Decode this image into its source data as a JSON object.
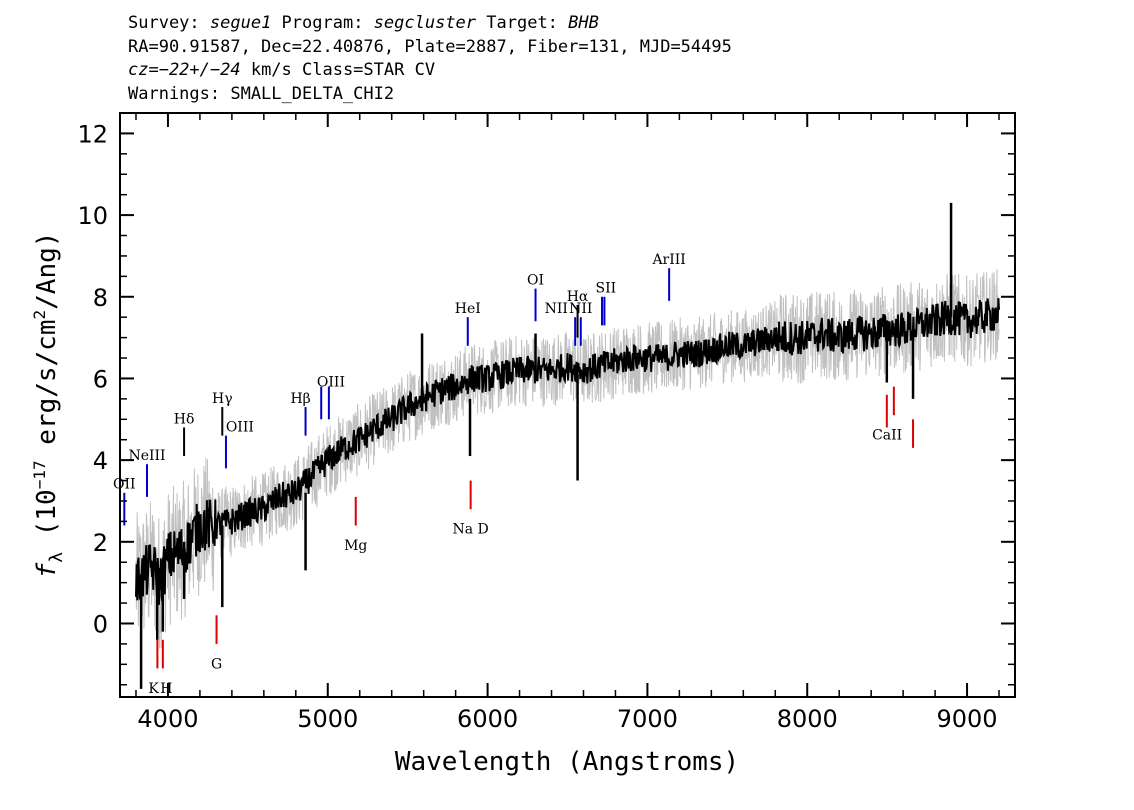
{
  "header": {
    "line1": {
      "survey_label": "Survey: ",
      "survey": "segue1",
      "program_label": " Program: ",
      "program": "segcluster",
      "target_label": " Target: ",
      "target": "BHB"
    },
    "line2": "RA=90.91587, Dec=22.40876, Plate=2887, Fiber=131, MJD=54495",
    "line3": {
      "cz": "cz=−22+/−24",
      "rest": " km/s Class=STAR CV"
    },
    "line4": "Warnings: SMALL_DELTA_CHI2"
  },
  "chart_data": {
    "type": "line",
    "xlabel": "Wavelength (Angstroms)",
    "ylabel_parts": {
      "f": "f",
      "sub": "λ",
      "pre": " (10",
      "exp1": "−17",
      "mid": " erg/s/cm",
      "exp2": "2",
      "post": "/Ang)"
    },
    "xlim": [
      3700,
      9300
    ],
    "ylim": [
      -1.8,
      12.5
    ],
    "xticks": [
      4000,
      5000,
      6000,
      7000,
      8000,
      9000
    ],
    "yticks": [
      0,
      2,
      4,
      6,
      8,
      10,
      12
    ],
    "colors": {
      "smoothed": "#000000",
      "raw": "#c0c0c0",
      "emission": "#0000cc",
      "absorption": "#dd0000",
      "neutral": "#000000"
    },
    "series": [
      {
        "style": "raw-noisy",
        "x": [
          3800,
          3850,
          3900,
          3950,
          4000,
          4100,
          4200,
          4300,
          4400,
          4500,
          4600,
          4700,
          4800,
          4900,
          5000,
          5100,
          5200,
          5300,
          5400,
          5500,
          5600,
          5700,
          5800,
          5900,
          6000,
          6100,
          6200,
          6300,
          6400,
          6500,
          6600,
          6700,
          6800,
          6900,
          7000,
          7100,
          7200,
          7300,
          7400,
          7500,
          7600,
          7700,
          7800,
          7900,
          8000,
          8100,
          8200,
          8300,
          8400,
          8500,
          8600,
          8700,
          8800,
          8900,
          9000,
          9100,
          9200
        ],
        "y": [
          1.0,
          1.2,
          1.4,
          1.0,
          1.6,
          1.8,
          2.4,
          2.4,
          2.5,
          2.7,
          2.8,
          3.1,
          3.2,
          3.6,
          4.0,
          4.3,
          4.5,
          4.8,
          5.0,
          5.3,
          5.5,
          5.7,
          5.8,
          6.0,
          6.0,
          6.1,
          6.2,
          6.2,
          6.2,
          6.3,
          6.2,
          6.3,
          6.4,
          6.5,
          6.5,
          6.5,
          6.6,
          6.6,
          6.7,
          6.8,
          6.8,
          6.9,
          7.0,
          7.0,
          7.0,
          7.1,
          7.0,
          7.1,
          7.1,
          7.2,
          7.2,
          7.3,
          7.4,
          7.5,
          7.4,
          7.5,
          7.6
        ]
      },
      {
        "style": "smoothed",
        "x": [
          3800,
          3850,
          3900,
          3950,
          4000,
          4100,
          4200,
          4300,
          4400,
          4500,
          4600,
          4700,
          4800,
          4900,
          5000,
          5100,
          5200,
          5300,
          5400,
          5500,
          5600,
          5700,
          5800,
          5900,
          6000,
          6100,
          6200,
          6300,
          6400,
          6500,
          6600,
          6700,
          6800,
          6900,
          7000,
          7100,
          7200,
          7300,
          7400,
          7500,
          7600,
          7700,
          7800,
          7900,
          8000,
          8100,
          8200,
          8300,
          8400,
          8500,
          8600,
          8700,
          8800,
          8900,
          9000,
          9100,
          9200
        ],
        "y": [
          1.0,
          1.2,
          1.4,
          1.0,
          1.6,
          1.8,
          2.4,
          2.4,
          2.5,
          2.7,
          2.8,
          3.1,
          3.2,
          3.6,
          4.0,
          4.3,
          4.5,
          4.8,
          5.0,
          5.3,
          5.5,
          5.7,
          5.8,
          6.0,
          6.0,
          6.1,
          6.2,
          6.2,
          6.2,
          6.3,
          6.2,
          6.3,
          6.4,
          6.5,
          6.5,
          6.5,
          6.6,
          6.6,
          6.7,
          6.8,
          6.8,
          6.9,
          7.0,
          7.0,
          7.0,
          7.1,
          7.0,
          7.1,
          7.1,
          7.2,
          7.2,
          7.3,
          7.4,
          7.5,
          7.4,
          7.5,
          7.6
        ]
      }
    ],
    "spikes": [
      {
        "x": 3832,
        "y0": 1.2,
        "y1": -1.6
      },
      {
        "x": 3933,
        "y0": 1.5,
        "y1": -0.4
      },
      {
        "x": 3968,
        "y0": 1.5,
        "y1": -0.2
      },
      {
        "x": 4101,
        "y0": 2.0,
        "y1": 0.6
      },
      {
        "x": 4340,
        "y0": 2.4,
        "y1": 0.4
      },
      {
        "x": 4861,
        "y0": 3.2,
        "y1": 1.3
      },
      {
        "x": 5590,
        "y0": 5.2,
        "y1": 7.1
      },
      {
        "x": 5890,
        "y0": 5.5,
        "y1": 4.1
      },
      {
        "x": 6300,
        "y0": 6.2,
        "y1": 7.1
      },
      {
        "x": 6563,
        "y0": 6.1,
        "y1": 3.5
      },
      {
        "x": 8498,
        "y0": 7.2,
        "y1": 5.9
      },
      {
        "x": 8662,
        "y0": 7.2,
        "y1": 5.5
      },
      {
        "x": 8900,
        "y0": 7.5,
        "y1": 10.3
      }
    ],
    "lines": [
      {
        "label": "OII",
        "x": 3727,
        "y0": 3.2,
        "y1": 2.4,
        "lx": 3727,
        "ly": 3.3,
        "color": "emission"
      },
      {
        "label": "NeIII",
        "x": 3869,
        "y0": 3.9,
        "y1": 3.1,
        "lx": 3869,
        "ly": 4.0,
        "color": "emission"
      },
      {
        "label": "Hδ",
        "x": 4101,
        "y0": 4.8,
        "y1": 4.1,
        "lx": 4101,
        "ly": 4.9,
        "color": "neutral"
      },
      {
        "label": "Hγ",
        "x": 4340,
        "y0": 5.3,
        "y1": 4.6,
        "lx": 4340,
        "ly": 5.4,
        "color": "neutral"
      },
      {
        "label": "OIII",
        "x": 4363,
        "y0": 4.6,
        "y1": 3.8,
        "lx": 4450,
        "ly": 4.7,
        "color": "emission"
      },
      {
        "label": "Hβ",
        "x": 4861,
        "y0": 5.3,
        "y1": 4.6,
        "lx": 4830,
        "ly": 5.4,
        "color": "emission"
      },
      {
        "label": "OIII",
        "x": 4959,
        "y0": 5.8,
        "y1": 5.0,
        "lx": 5020,
        "ly": 5.8,
        "color": "emission"
      },
      {
        "label": "",
        "x": 5007,
        "y0": 5.8,
        "y1": 5.0,
        "lx": 5007,
        "ly": 5.8,
        "color": "emission"
      },
      {
        "label": "HeI",
        "x": 5876,
        "y0": 7.5,
        "y1": 6.8,
        "lx": 5876,
        "ly": 7.6,
        "color": "emission"
      },
      {
        "label": "OI",
        "x": 6300,
        "y0": 8.2,
        "y1": 7.4,
        "lx": 6300,
        "ly": 8.3,
        "color": "emission"
      },
      {
        "label": "NII",
        "x": 6548,
        "y0": 7.5,
        "y1": 6.8,
        "lx": 6430,
        "ly": 7.6,
        "color": "emission"
      },
      {
        "label": "Hα",
        "x": 6563,
        "y0": 7.8,
        "y1": 7.0,
        "lx": 6563,
        "ly": 7.9,
        "color": "neutral"
      },
      {
        "label": "NII",
        "x": 6583,
        "y0": 7.5,
        "y1": 6.8,
        "lx": 6583,
        "ly": 7.6,
        "color": "emission"
      },
      {
        "label": "SII",
        "x": 6716,
        "y0": 8.0,
        "y1": 7.3,
        "lx": 6740,
        "ly": 8.1,
        "color": "emission"
      },
      {
        "label": "",
        "x": 6731,
        "y0": 8.0,
        "y1": 7.3,
        "lx": 6731,
        "ly": 8.1,
        "color": "emission"
      },
      {
        "label": "ArIII",
        "x": 7136,
        "y0": 8.7,
        "y1": 7.9,
        "lx": 7136,
        "ly": 8.8,
        "color": "emission"
      },
      {
        "label": "K",
        "x": 3934,
        "y0": -0.4,
        "y1": -1.1,
        "lx": 3910,
        "ly": -1.7,
        "color": "absorption"
      },
      {
        "label": "H",
        "x": 3968,
        "y0": -0.4,
        "y1": -1.1,
        "lx": 3990,
        "ly": -1.7,
        "color": "absorption"
      },
      {
        "label": "G",
        "x": 4304,
        "y0": 0.2,
        "y1": -0.5,
        "lx": 4304,
        "ly": -1.1,
        "color": "absorption"
      },
      {
        "label": "Mg",
        "x": 5175,
        "y0": 3.1,
        "y1": 2.4,
        "lx": 5175,
        "ly": 1.8,
        "color": "absorption"
      },
      {
        "label": "Na D",
        "x": 5894,
        "y0": 3.5,
        "y1": 2.8,
        "lx": 5894,
        "ly": 2.2,
        "color": "absorption"
      },
      {
        "label": "",
        "x": 8498,
        "y0": 5.6,
        "y1": 4.8,
        "lx": 8498,
        "ly": 4.8,
        "color": "absorption"
      },
      {
        "label": "",
        "x": 8542,
        "y0": 5.8,
        "y1": 5.1,
        "lx": 8542,
        "ly": 5.1,
        "color": "absorption"
      },
      {
        "label": "CaII",
        "x": 8662,
        "y0": 5.0,
        "y1": 4.3,
        "lx": 8500,
        "ly": 4.5,
        "color": "absorption"
      }
    ]
  }
}
